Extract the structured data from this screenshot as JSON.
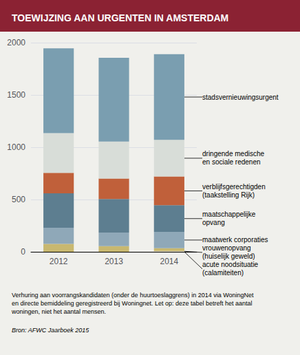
{
  "chart_data": {
    "type": "bar",
    "title": "TOEWIJZING AAN URGENTEN IN AMSTERDAM",
    "title_color": "#8B2233",
    "background_color": "#F0F0EC",
    "categories": [
      "2012",
      "2013",
      "2014"
    ],
    "series": [
      {
        "name": "acute noodsituatie\n(calamiteiten)",
        "color": "#f0f0f0",
        "values": [
          0,
          0,
          5
        ]
      },
      {
        "name": "vrouwenopvang\n(huiselijk geweld)",
        "color": "#C8B870",
        "values": [
          75,
          55,
          30
        ]
      },
      {
        "name": "maatwerk corporaties",
        "color": "#8FA8B8",
        "values": [
          155,
          130,
          155
        ]
      },
      {
        "name": "maatschappelijke\nopvang",
        "color": "#5D7E90",
        "values": [
          330,
          320,
          255
        ]
      },
      {
        "name": "verblijfsgerechtigden\n(taakstelling Rijk)",
        "color": "#C0603A",
        "values": [
          195,
          195,
          275
        ]
      },
      {
        "name": "dringende medische\nen sociale redenen",
        "color": "#D8DDD8",
        "values": [
          380,
          355,
          350
        ]
      },
      {
        "name": "stadsvernieuwingsurgent",
        "color": "#7A9EB0",
        "values": [
          810,
          800,
          820
        ]
      }
    ],
    "stacked": true,
    "ylim": [
      0,
      2000
    ],
    "yticks": [
      0,
      500,
      1000,
      1500,
      2000
    ],
    "grid": true,
    "annotations": [
      "Verhuring aan voorrangskandidaten (onder de huurtoeslaggrens) in 2014 via WoningNet\nen directe bemiddeling geregistreerd bij Woningnet. Let op: deze tabel betreft het aantal\nwoningen, niet het aantal mensen.",
      "Bron: AFWC Jaarboek 2015"
    ]
  }
}
